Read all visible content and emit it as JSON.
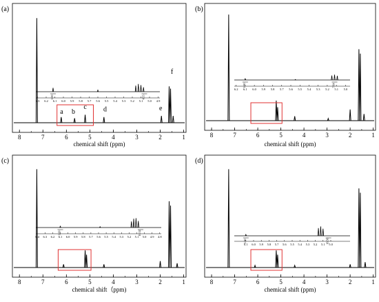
{
  "chart_data": [
    {
      "type": "line",
      "panel_label": "(a)",
      "xlabel": "chemical shift (ppm)",
      "x_ticks": [
        "8",
        "7",
        "6",
        "5",
        "4",
        "3",
        "2",
        "1"
      ],
      "xlim": [
        8.3,
        0.9
      ],
      "peaks": [
        {
          "x": 7.26,
          "h": 0.92
        },
        {
          "x": 6.22,
          "h": 0.05
        },
        {
          "x": 5.65,
          "h": 0.04
        },
        {
          "x": 5.2,
          "h": 0.07
        },
        {
          "x": 4.4,
          "h": 0.05
        },
        {
          "x": 1.95,
          "h": 0.06
        },
        {
          "x": 1.62,
          "h": 0.32
        },
        {
          "x": 1.56,
          "h": 0.3
        },
        {
          "x": 1.45,
          "h": 0.06
        }
      ],
      "peak_labels": [
        {
          "text": "a",
          "x": 6.2,
          "y": 0.08
        },
        {
          "text": "b",
          "x": 5.7,
          "y": 0.08
        },
        {
          "text": "c",
          "x": 5.2,
          "y": 0.12
        },
        {
          "text": "d",
          "x": 4.35,
          "y": 0.1
        },
        {
          "text": "e",
          "x": 1.98,
          "y": 0.11
        },
        {
          "text": "f",
          "x": 1.5,
          "y": 0.43
        }
      ],
      "highlight_range": [
        6.4,
        4.85
      ],
      "inset": {
        "x_range": [
          6.32,
          4.88
        ],
        "ticks": [
          "6.3",
          "6.2",
          "6.1",
          "6.0",
          "5.9",
          "5.8",
          "5.7",
          "5.6",
          "5.5",
          "5.4",
          "5.3",
          "5.2",
          "5.1",
          "5.0",
          "4.9"
        ],
        "peaks": [
          {
            "x": 6.12,
            "h": 0.35
          },
          {
            "x": 5.6,
            "h": 0.15
          },
          {
            "x": 5.16,
            "h": 0.55
          },
          {
            "x": 5.13,
            "h": 0.7
          },
          {
            "x": 5.1,
            "h": 0.6
          },
          {
            "x": 5.07,
            "h": 0.4
          }
        ],
        "integrals": [
          {
            "x": 6.12,
            "text": "1.00"
          },
          {
            "x": 5.06,
            "text": "4.55"
          }
        ]
      }
    },
    {
      "type": "line",
      "panel_label": "(b)",
      "xlabel": "chemical shift (ppm)",
      "x_ticks": [
        "8",
        "7",
        "6",
        "5",
        "4",
        "3",
        "2",
        "1"
      ],
      "xlim": [
        8.3,
        0.9
      ],
      "peaks": [
        {
          "x": 7.26,
          "h": 0.95
        },
        {
          "x": 5.2,
          "h": 0.18
        },
        {
          "x": 5.14,
          "h": 0.12
        },
        {
          "x": 4.4,
          "h": 0.04
        },
        {
          "x": 2.95,
          "h": 0.02
        },
        {
          "x": 2.0,
          "h": 0.1
        },
        {
          "x": 1.62,
          "h": 0.64
        },
        {
          "x": 1.56,
          "h": 0.6
        },
        {
          "x": 1.4,
          "h": 0.06
        }
      ],
      "highlight_range": [
        6.3,
        4.95
      ],
      "inset": {
        "x_range": [
          6.22,
          4.95
        ],
        "ticks": [
          "6.2",
          "6.1",
          "6.0",
          "5.9",
          "5.8",
          "5.7",
          "5.6",
          "5.5",
          "5.4",
          "5.3",
          "5.2",
          "5.1",
          "5.0"
        ],
        "peaks": [
          {
            "x": 6.1,
            "h": 0.12
          },
          {
            "x": 5.55,
            "h": 0.05
          },
          {
            "x": 5.15,
            "h": 0.4
          },
          {
            "x": 5.12,
            "h": 0.48
          },
          {
            "x": 5.09,
            "h": 0.38
          }
        ],
        "integrals": [
          {
            "x": 6.1,
            "text": "1.00"
          },
          {
            "x": 5.12,
            "text": "7.64"
          }
        ]
      }
    },
    {
      "type": "line",
      "panel_label": "(c)",
      "xlabel": "chemical shift（ppm)",
      "x_ticks": [
        "8",
        "7",
        "6",
        "5",
        "4",
        "3",
        "2",
        "1"
      ],
      "xlim": [
        8.3,
        0.9
      ],
      "peaks": [
        {
          "x": 7.26,
          "h": 0.92
        },
        {
          "x": 6.12,
          "h": 0.03
        },
        {
          "x": 5.2,
          "h": 0.16
        },
        {
          "x": 5.14,
          "h": 0.12
        },
        {
          "x": 4.4,
          "h": 0.03
        },
        {
          "x": 2.0,
          "h": 0.06
        },
        {
          "x": 1.62,
          "h": 0.62
        },
        {
          "x": 1.56,
          "h": 0.58
        },
        {
          "x": 1.28,
          "h": 0.04
        }
      ],
      "highlight_range": [
        6.35,
        4.95
      ],
      "inset": {
        "x_range": [
          6.42,
          4.78
        ],
        "ticks": [
          "6.4",
          "6.3",
          "6.2",
          "6.1",
          "6.0",
          "5.9",
          "5.8",
          "5.7",
          "5.6",
          "5.5",
          "5.4",
          "5.3",
          "5.2",
          "5.1",
          "5.0",
          "4.9",
          "4.8"
        ],
        "peaks": [
          {
            "x": 6.1,
            "h": 0.12
          },
          {
            "x": 5.58,
            "h": 0.08
          },
          {
            "x": 5.17,
            "h": 0.55
          },
          {
            "x": 5.14,
            "h": 0.8
          },
          {
            "x": 5.11,
            "h": 0.85
          },
          {
            "x": 5.08,
            "h": 0.6
          }
        ],
        "integrals": [
          {
            "x": 6.1,
            "text": "1.00"
          },
          {
            "x": 5.05,
            "text": "10.52"
          }
        ]
      }
    },
    {
      "type": "line",
      "panel_label": "(d)",
      "xlabel": "chemical shift (ppm)",
      "x_ticks": [
        "8",
        "7",
        "6",
        "5",
        "4",
        "3",
        "2",
        "1"
      ],
      "xlim": [
        8.3,
        0.9
      ],
      "peaks": [
        {
          "x": 7.26,
          "h": 0.92
        },
        {
          "x": 6.12,
          "h": 0.02
        },
        {
          "x": 5.2,
          "h": 0.16
        },
        {
          "x": 5.14,
          "h": 0.12
        },
        {
          "x": 4.4,
          "h": 0.02
        },
        {
          "x": 2.0,
          "h": 0.03
        },
        {
          "x": 1.62,
          "h": 0.74
        },
        {
          "x": 1.56,
          "h": 0.7
        },
        {
          "x": 1.35,
          "h": 0.05
        }
      ],
      "highlight_range": [
        6.3,
        4.95
      ],
      "inset": {
        "x_range": [
          6.25,
          4.75
        ],
        "ticks": [
          "6.1",
          "6.0",
          "5.9",
          "5.8",
          "5.7",
          "5.6",
          "5.5",
          "5.4",
          "5.3",
          "5.2",
          "5.1",
          "5.0"
        ],
        "peaks": [
          {
            "x": 6.1,
            "h": 0.12
          },
          {
            "x": 5.16,
            "h": 0.7
          },
          {
            "x": 5.13,
            "h": 0.85
          },
          {
            "x": 5.1,
            "h": 0.65
          }
        ],
        "integrals": [
          {
            "x": 6.1,
            "text": "1.00"
          },
          {
            "x": 5.03,
            "text": "16.56"
          }
        ]
      }
    }
  ]
}
